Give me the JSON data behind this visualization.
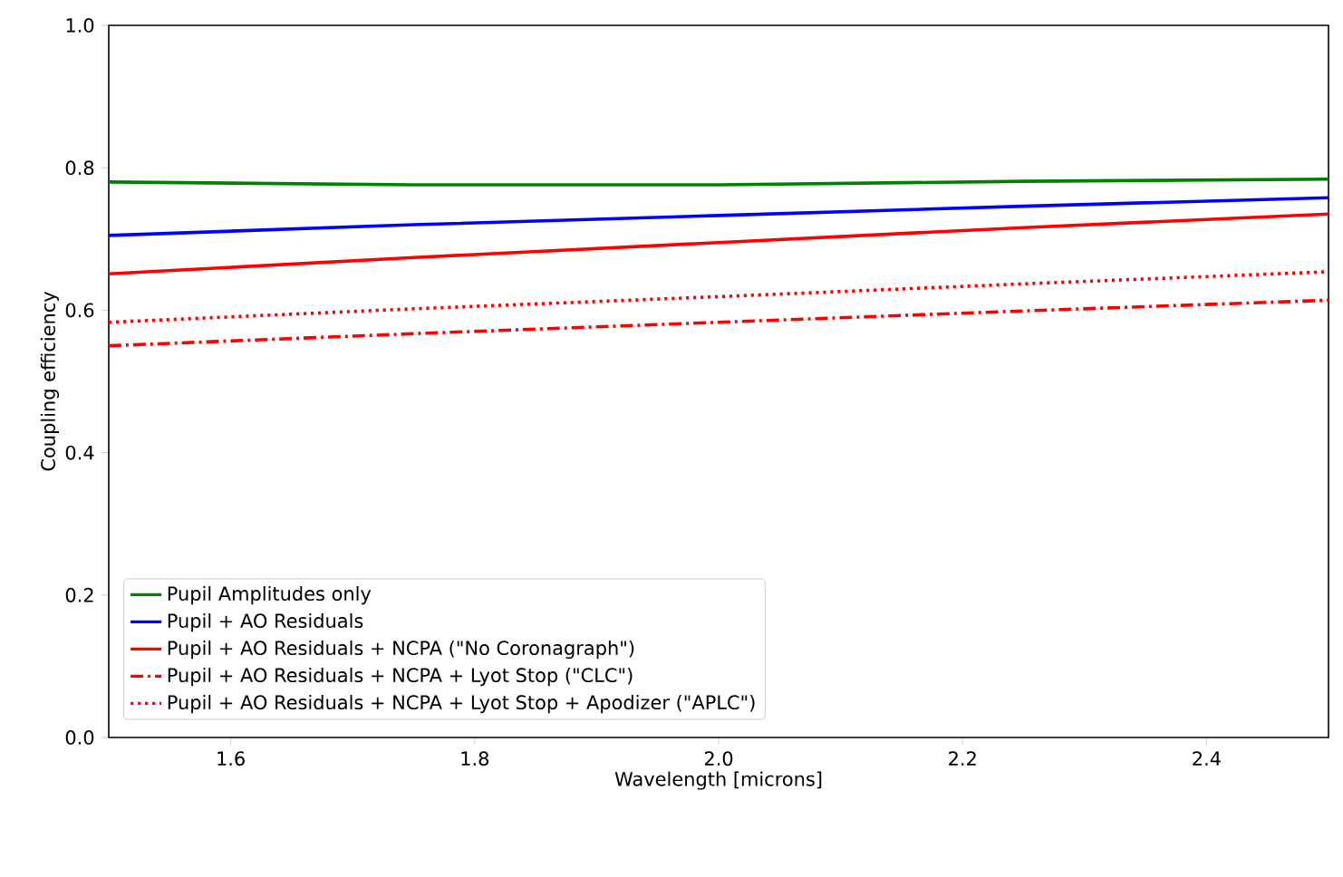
{
  "chart_data": {
    "type": "line",
    "xlabel": "Wavelength [microns]",
    "ylabel": "Coupling efficiency",
    "x": [
      1.5,
      1.75,
      2.0,
      2.25,
      2.5
    ],
    "series": [
      {
        "name": "Pupil Amplitudes only",
        "color": "#008000",
        "line_style": "solid",
        "values": [
          0.78,
          0.776,
          0.776,
          0.781,
          0.784
        ]
      },
      {
        "name": "Pupil + AO Residuals",
        "color": "#0000ff",
        "line_style": "solid",
        "values": [
          0.705,
          0.72,
          0.733,
          0.746,
          0.758
        ]
      },
      {
        "name": "Pupil + AO Residuals + NCPA (\"No Coronagraph\")",
        "color": "#ff0000",
        "line_style": "solid",
        "values": [
          0.651,
          0.674,
          0.695,
          0.716,
          0.735
        ]
      },
      {
        "name": "Pupil + AO Residuals + NCPA + Lyot Stop (\"CLC\")",
        "color": "#ff0000",
        "line_style": "dashdot",
        "values": [
          0.55,
          0.567,
          0.583,
          0.599,
          0.614
        ]
      },
      {
        "name": "Pupil + AO Residuals + NCPA + Lyot Stop + Apodizer (\"APLC\")",
        "color": "#ff0000",
        "line_style": "dotted",
        "values": [
          0.583,
          0.602,
          0.619,
          0.637,
          0.654
        ]
      }
    ],
    "xlim": [
      1.5,
      2.5
    ],
    "ylim": [
      0.0,
      1.0
    ],
    "xticks": [
      1.6,
      1.8,
      {
        "value": 2.0,
        "label": "2.0"
      },
      2.2,
      2.4
    ],
    "yticks": [
      {
        "value": 0.0,
        "label": "0.0"
      },
      {
        "value": 0.2,
        "label": "0.2"
      },
      {
        "value": 0.4,
        "label": "0.4"
      },
      {
        "value": 0.6,
        "label": "0.6"
      },
      {
        "value": 0.8,
        "label": "0.8"
      },
      {
        "value": 1.0,
        "label": "1.0"
      }
    ],
    "grid": false,
    "legend": "bottom left",
    "marker": "none"
  }
}
